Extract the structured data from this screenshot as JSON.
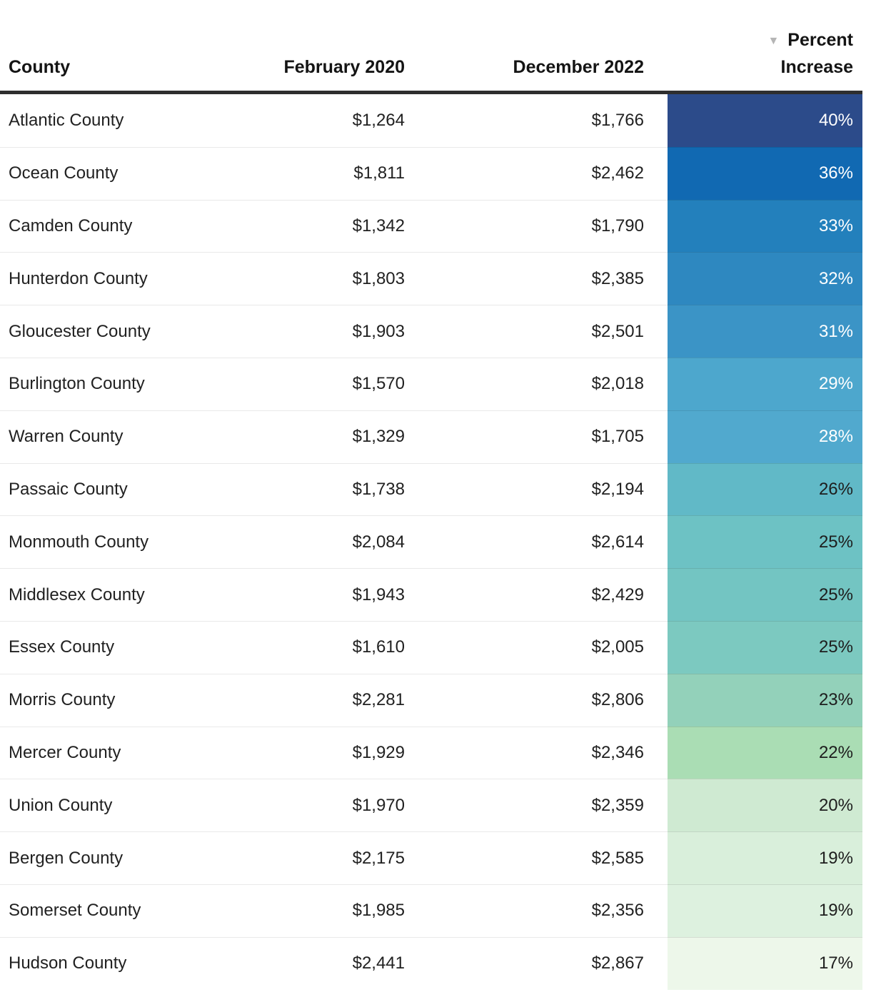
{
  "chart_data": {
    "type": "table",
    "columns": [
      "County",
      "February 2020",
      "December 2022",
      "Percent Increase"
    ],
    "sort": {
      "column": "Percent Increase",
      "direction": "desc"
    },
    "rows": [
      {
        "county": "Atlantic County",
        "feb_2020": "$1,264",
        "dec_2022": "$1,766",
        "percent_increase": "40%",
        "percent_cell_color": "#2c4b8a",
        "percent_text_color": "#ffffff"
      },
      {
        "county": "Ocean County",
        "feb_2020": "$1,811",
        "dec_2022": "$2,462",
        "percent_increase": "36%",
        "percent_cell_color": "#1169b2",
        "percent_text_color": "#ffffff"
      },
      {
        "county": "Camden County",
        "feb_2020": "$1,342",
        "dec_2022": "$1,790",
        "percent_increase": "33%",
        "percent_cell_color": "#2380bc",
        "percent_text_color": "#ffffff"
      },
      {
        "county": "Hunterdon County",
        "feb_2020": "$1,803",
        "dec_2022": "$2,385",
        "percent_increase": "32%",
        "percent_cell_color": "#2e88c0",
        "percent_text_color": "#ffffff"
      },
      {
        "county": "Gloucester County",
        "feb_2020": "$1,903",
        "dec_2022": "$2,501",
        "percent_increase": "31%",
        "percent_cell_color": "#3b94c6",
        "percent_text_color": "#ffffff"
      },
      {
        "county": "Burlington County",
        "feb_2020": "$1,570",
        "dec_2022": "$2,018",
        "percent_increase": "29%",
        "percent_cell_color": "#4da7cd",
        "percent_text_color": "#ffffff"
      },
      {
        "county": "Warren County",
        "feb_2020": "$1,329",
        "dec_2022": "$1,705",
        "percent_increase": "28%",
        "percent_cell_color": "#51a9ce",
        "percent_text_color": "#ffffff"
      },
      {
        "county": "Passaic County",
        "feb_2020": "$1,738",
        "dec_2022": "$2,194",
        "percent_increase": "26%",
        "percent_cell_color": "#61b9c7",
        "percent_text_color": "#1d1d1d"
      },
      {
        "county": "Monmouth County",
        "feb_2020": "$2,084",
        "dec_2022": "$2,614",
        "percent_increase": "25%",
        "percent_cell_color": "#6dc2c4",
        "percent_text_color": "#1d1d1d"
      },
      {
        "county": "Middlesex County",
        "feb_2020": "$1,943",
        "dec_2022": "$2,429",
        "percent_increase": "25%",
        "percent_cell_color": "#73c5c2",
        "percent_text_color": "#1d1d1d"
      },
      {
        "county": "Essex County",
        "feb_2020": "$1,610",
        "dec_2022": "$2,005",
        "percent_increase": "25%",
        "percent_cell_color": "#7cc9c0",
        "percent_text_color": "#1d1d1d"
      },
      {
        "county": "Morris County",
        "feb_2020": "$2,281",
        "dec_2022": "$2,806",
        "percent_increase": "23%",
        "percent_cell_color": "#93d1ba",
        "percent_text_color": "#1d1d1d"
      },
      {
        "county": "Mercer County",
        "feb_2020": "$1,929",
        "dec_2022": "$2,346",
        "percent_increase": "22%",
        "percent_cell_color": "#aaddb4",
        "percent_text_color": "#1d1d1d"
      },
      {
        "county": "Union County",
        "feb_2020": "$1,970",
        "dec_2022": "$2,359",
        "percent_increase": "20%",
        "percent_cell_color": "#cfead2",
        "percent_text_color": "#1d1d1d"
      },
      {
        "county": "Bergen County",
        "feb_2020": "$2,175",
        "dec_2022": "$2,585",
        "percent_increase": "19%",
        "percent_cell_color": "#d9efdb",
        "percent_text_color": "#1d1d1d"
      },
      {
        "county": "Somerset County",
        "feb_2020": "$1,985",
        "dec_2022": "$2,356",
        "percent_increase": "19%",
        "percent_cell_color": "#ddf1df",
        "percent_text_color": "#1d1d1d"
      },
      {
        "county": "Hudson County",
        "feb_2020": "$2,441",
        "dec_2022": "$2,867",
        "percent_increase": "17%",
        "percent_cell_color": "#edf7ea",
        "percent_text_color": "#1d1d1d"
      }
    ]
  },
  "header": {
    "percent_line1": "Percent",
    "percent_line2": "Increase"
  },
  "icons": {
    "sort_desc": "▼"
  },
  "colors": {
    "header_border": "#2e2e2e",
    "row_divider": "#e9e9e9",
    "sort_icon": "#b5b5b5",
    "text": "#1d1d1d",
    "background": "#ffffff"
  }
}
